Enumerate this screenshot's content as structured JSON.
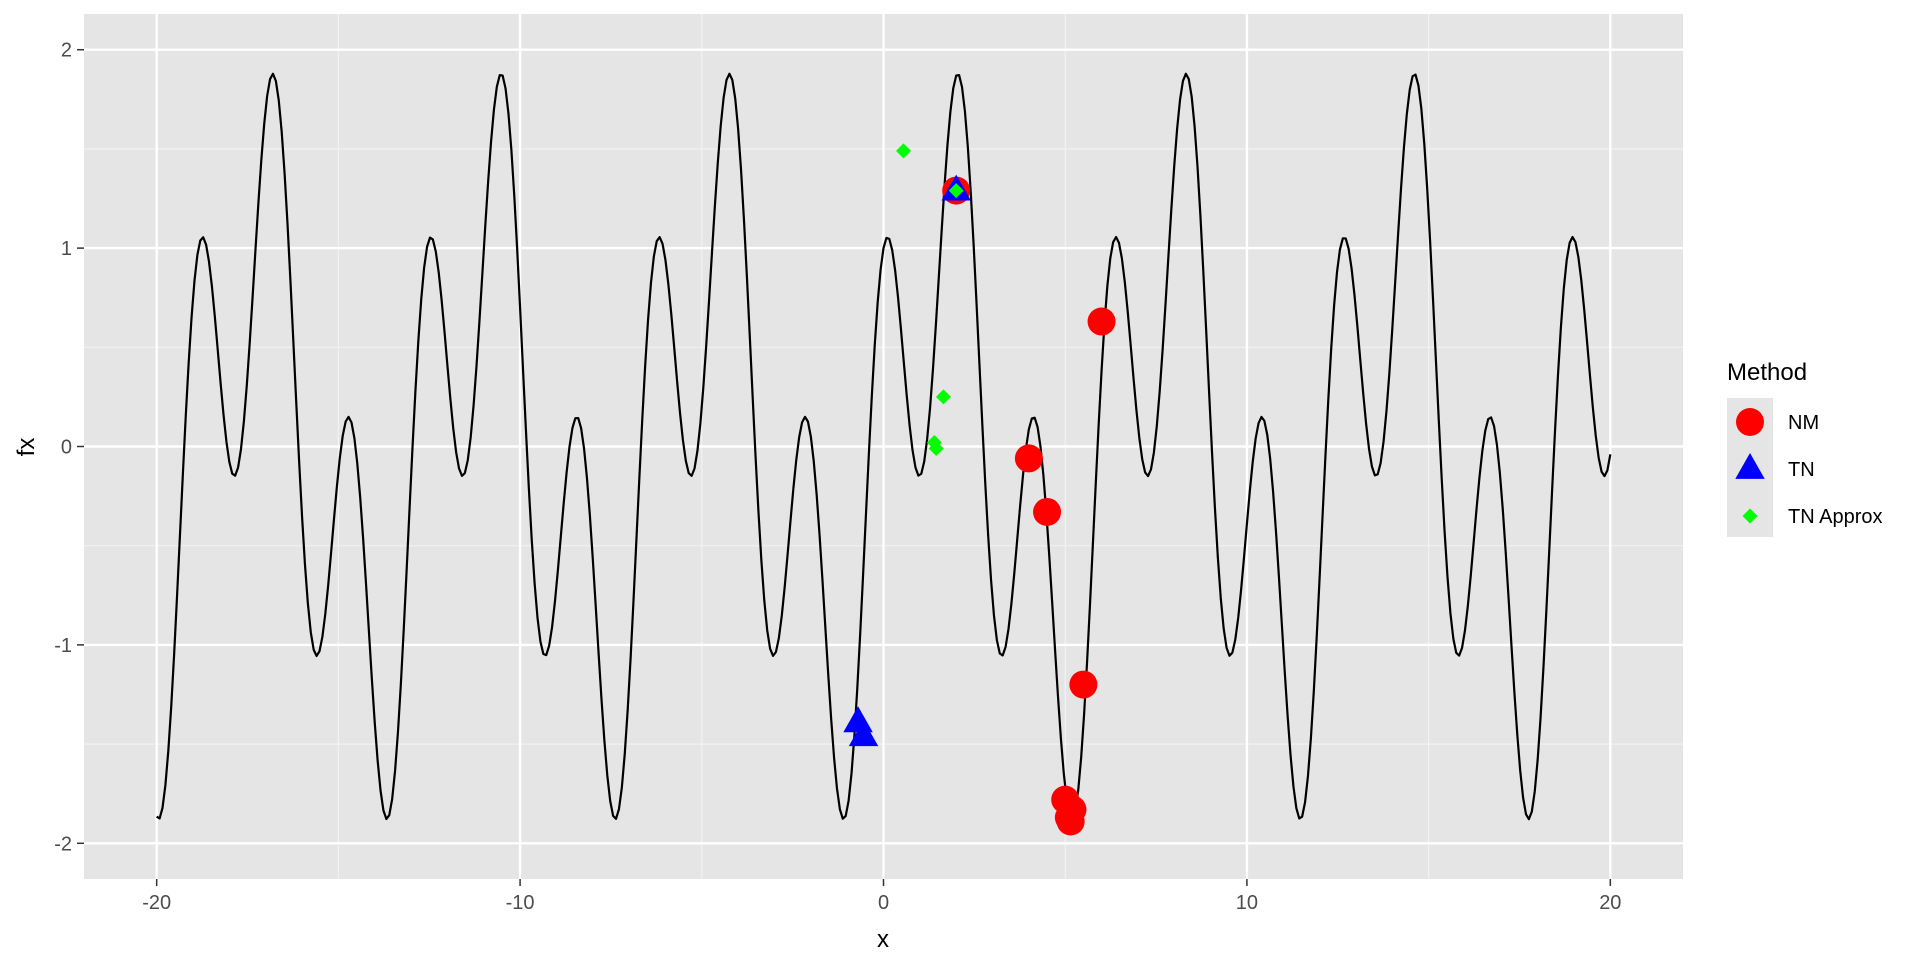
{
  "chart_data": {
    "type": "scatter",
    "xlabel": "x",
    "ylabel": "fx",
    "xlim": [
      -22.0,
      22.0
    ],
    "ylim": [
      -2.18,
      2.18
    ],
    "x_ticks": [
      -20,
      -10,
      0,
      10,
      20
    ],
    "x_tick_labels": [
      "-20",
      "-10",
      "0",
      "10",
      "20"
    ],
    "y_ticks": [
      -2,
      -1,
      0,
      1,
      2
    ],
    "y_tick_labels": [
      "-2",
      "-1",
      "0",
      "1",
      "2"
    ],
    "grid": true,
    "background": "#e5e5e5",
    "curve": {
      "function": "sin(x) + cos(3x)",
      "x_range": [
        -20,
        20
      ],
      "color": "#000000"
    },
    "legend": {
      "title": "Method",
      "position": "right",
      "entries": [
        {
          "label": "NM",
          "shape": "circle",
          "color": "#ff0000"
        },
        {
          "label": "TN",
          "shape": "triangle",
          "color": "#0000ff"
        },
        {
          "label": "TN Approx",
          "shape": "diamond",
          "color": "#00ff00"
        }
      ]
    },
    "series": [
      {
        "name": "NM",
        "shape": "circle",
        "color": "#ff0000",
        "points": [
          {
            "x": 2.0,
            "y": 1.29
          },
          {
            "x": 6.0,
            "y": 0.63
          },
          {
            "x": 4.0,
            "y": -0.06
          },
          {
            "x": 4.5,
            "y": -0.33
          },
          {
            "x": 5.5,
            "y": -1.2
          },
          {
            "x": 5.0,
            "y": -1.78
          },
          {
            "x": 5.2,
            "y": -1.83
          },
          {
            "x": 5.1,
            "y": -1.87
          },
          {
            "x": 5.15,
            "y": -1.89
          }
        ]
      },
      {
        "name": "TN",
        "shape": "triangle",
        "color": "#0000ff",
        "points": [
          {
            "x": 2.0,
            "y": 1.29
          },
          {
            "x": -0.7,
            "y": -1.39
          },
          {
            "x": -0.55,
            "y": -1.46
          }
        ]
      },
      {
        "name": "TN Approx",
        "shape": "diamond",
        "color": "#00ff00",
        "points": [
          {
            "x": 0.55,
            "y": 1.49
          },
          {
            "x": 2.0,
            "y": 1.29
          },
          {
            "x": 1.65,
            "y": 0.25
          },
          {
            "x": 1.4,
            "y": 0.02
          },
          {
            "x": 1.45,
            "y": -0.01
          }
        ]
      }
    ]
  }
}
